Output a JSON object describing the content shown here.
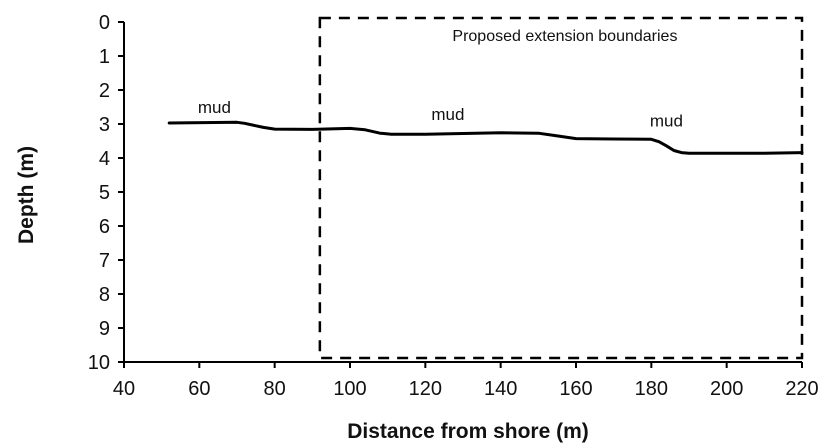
{
  "chart_data": {
    "type": "line",
    "xlabel": "Distance from shore (m)",
    "ylabel": "Depth (m)",
    "xlim": [
      40,
      220
    ],
    "ylim": [
      0,
      10
    ],
    "y_inverted": true,
    "x_ticks": [
      "40",
      "60",
      "80",
      "100",
      "120",
      "140",
      "160",
      "180",
      "200",
      "220"
    ],
    "y_ticks": [
      "0",
      "1",
      "2",
      "3",
      "4",
      "5",
      "6",
      "7",
      "8",
      "9",
      "10"
    ],
    "grid": false,
    "series": [
      {
        "x": [
          52,
          70,
          72,
          77,
          80,
          90,
          100,
          104,
          108,
          111,
          120,
          130,
          140,
          150,
          155,
          160,
          170,
          180,
          182,
          184,
          186,
          188,
          190,
          200,
          210,
          220
        ],
        "y": [
          2.97,
          2.95,
          2.98,
          3.1,
          3.15,
          3.16,
          3.13,
          3.17,
          3.27,
          3.3,
          3.3,
          3.28,
          3.26,
          3.27,
          3.35,
          3.43,
          3.44,
          3.45,
          3.52,
          3.64,
          3.78,
          3.84,
          3.86,
          3.86,
          3.86,
          3.84
        ]
      }
    ],
    "annotations": [
      {
        "text": "mud",
        "x": 64,
        "y": 2.5
      },
      {
        "text": "mud",
        "x": 126,
        "y": 2.7
      },
      {
        "text": "mud",
        "x": 184,
        "y": 2.9
      }
    ],
    "boundary_box": {
      "label": "Proposed extension boundaries",
      "x_range": [
        92,
        220
      ],
      "y_range": [
        0,
        10
      ]
    }
  }
}
